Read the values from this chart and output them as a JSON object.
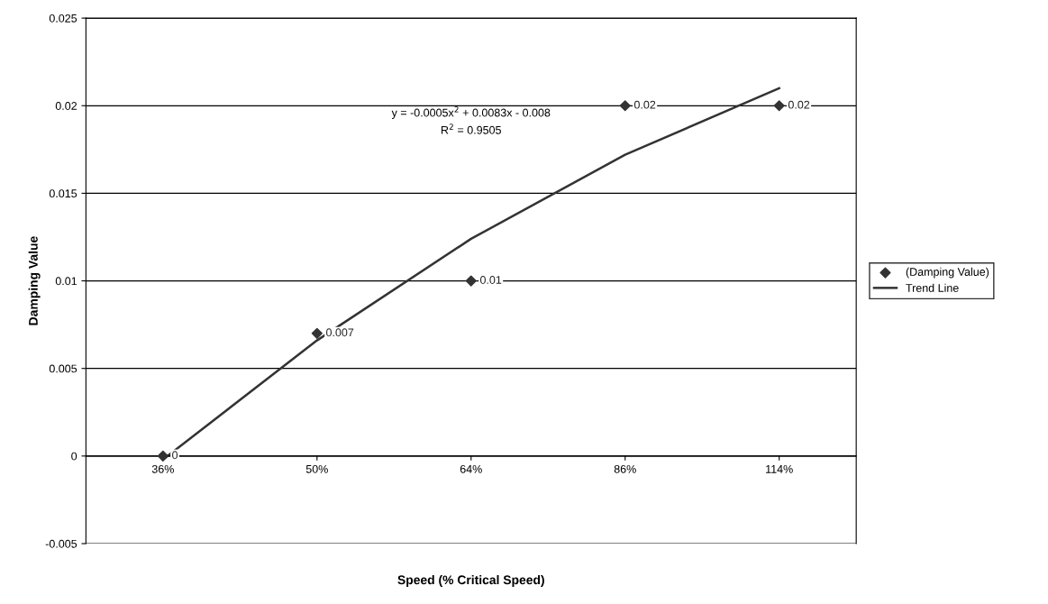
{
  "chart_data": {
    "type": "scatter",
    "xlabel": "Speed (% Critical Speed)",
    "ylabel": "Damping Value",
    "categories": [
      "36%",
      "50%",
      "64%",
      "86%",
      "114%"
    ],
    "ylim": [
      -0.005,
      0.025
    ],
    "yticks": [
      -0.005,
      0,
      0.005,
      0.01,
      0.015,
      0.02,
      0.025
    ],
    "series": [
      {
        "name": "(Damping Value)",
        "color": "#333333",
        "values": [
          0,
          0.007,
          0.01,
          0.02,
          0.02
        ],
        "marker": "diamond",
        "data_labels": true
      },
      {
        "name": "Trend Line",
        "type": "line",
        "color": "#333333",
        "values": [
          -0.0002,
          0.0066,
          0.0124,
          0.0172,
          0.021
        ],
        "line_style": "solid"
      }
    ],
    "annotations": [
      "y = -0.0005x$^{2}$ + 0.0083x - 0.008",
      "R$^{2}$ = 0.9505"
    ],
    "grid": "y",
    "legend": "right"
  }
}
